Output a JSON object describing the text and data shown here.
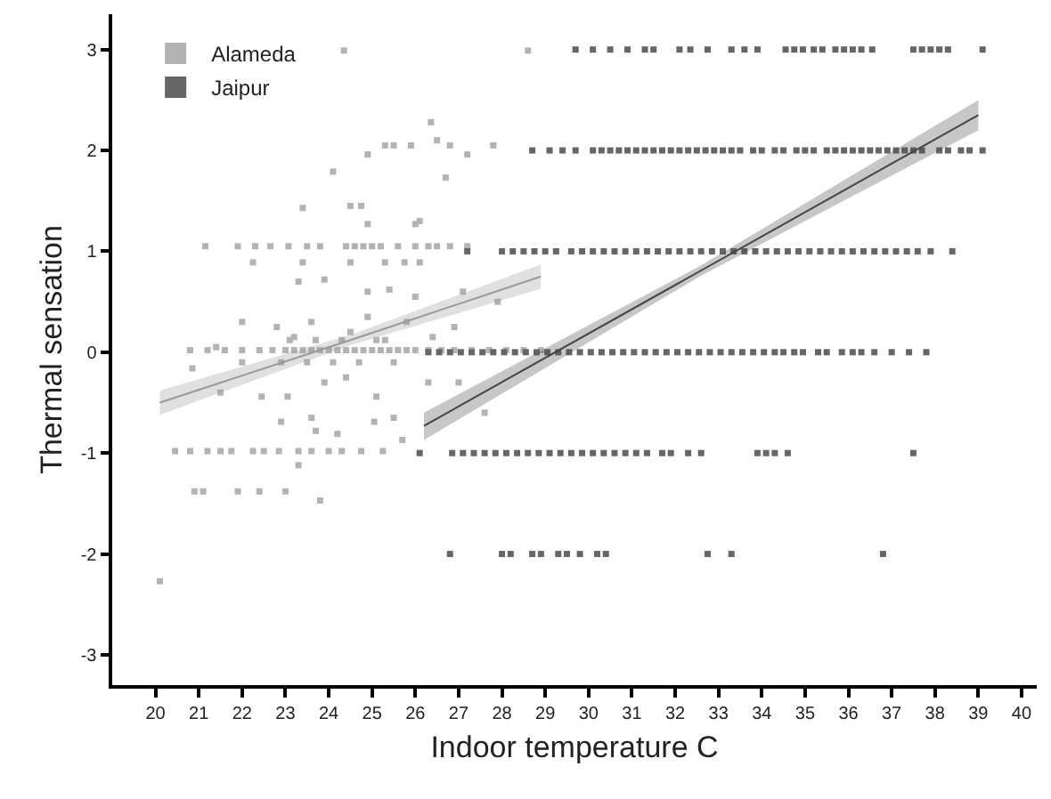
{
  "chart_data": {
    "type": "scatter",
    "xlabel": "Indoor temperature C",
    "ylabel": "Thermal sensation",
    "xlim": [
      19.0,
      40.35
    ],
    "ylim": [
      -3.3,
      3.35
    ],
    "xticks": [
      20,
      21,
      22,
      23,
      24,
      25,
      26,
      27,
      28,
      29,
      30,
      31,
      32,
      33,
      34,
      35,
      36,
      37,
      38,
      39,
      40
    ],
    "yticks": [
      -3,
      -2,
      -1,
      0,
      1,
      2,
      3
    ],
    "legend": "top left",
    "series": [
      {
        "name": "Alameda",
        "marker": "square",
        "color": "#b3b3b3",
        "x": [
          24.35,
          28.6,
          26.36,
          24.9,
          25.3,
          25.5,
          25.9,
          26.5,
          26.8,
          27.2,
          27.8,
          24.1,
          26.7,
          23.4,
          24.5,
          24.75,
          24.9,
          26.0,
          26.1,
          21.15,
          21.9,
          22.3,
          22.65,
          23.07,
          23.5,
          23.8,
          24.4,
          24.6,
          24.8,
          25.0,
          25.2,
          25.6,
          26.0,
          26.3,
          26.5,
          26.8,
          27.2,
          22.25,
          23.4,
          24.5,
          25.3,
          25.75,
          26.1,
          23.3,
          23.9,
          24.9,
          25.4,
          26.0,
          27.1,
          27.9,
          22.0,
          22.8,
          23.2,
          23.6,
          24.5,
          24.9,
          25.3,
          25.8,
          26.4,
          26.9,
          21.4,
          20.8,
          21.2,
          21.6,
          22.0,
          22.4,
          22.7,
          23.0,
          23.2,
          23.4,
          23.6,
          23.8,
          24.0,
          24.2,
          24.4,
          24.6,
          24.8,
          25.0,
          25.2,
          25.4,
          25.6,
          25.8,
          26.0,
          26.3,
          26.6,
          26.9,
          27.3,
          27.7,
          28.1,
          28.5,
          28.9,
          22.9,
          23.5,
          24.1,
          24.7,
          25.5,
          23.1,
          23.7,
          24.3,
          25.1,
          20.85,
          22.0,
          22.45,
          23.05,
          22.9,
          23.6,
          23.7,
          24.2,
          25.1,
          25.05,
          25.5,
          25.7,
          26.3,
          27.0,
          27.6,
          24.4,
          23.9,
          21.5,
          20.45,
          20.8,
          21.2,
          21.5,
          21.75,
          22.25,
          22.5,
          22.85,
          23.3,
          23.6,
          24.0,
          24.3,
          24.75,
          25.25,
          23.3,
          20.9,
          21.1,
          21.9,
          22.4,
          23.0,
          23.8,
          20.1
        ],
        "values": [
          2.99,
          2.99,
          2.28,
          1.96,
          2.05,
          2.05,
          2.05,
          2.1,
          2.05,
          1.96,
          2.05,
          1.79,
          1.73,
          1.43,
          1.45,
          1.45,
          1.27,
          1.27,
          1.3,
          1.05,
          1.05,
          1.05,
          1.05,
          1.05,
          1.05,
          1.05,
          1.05,
          1.05,
          1.05,
          1.05,
          1.05,
          1.05,
          1.05,
          1.05,
          1.05,
          1.05,
          1.05,
          0.89,
          0.89,
          0.89,
          0.89,
          0.89,
          0.89,
          0.7,
          0.72,
          0.6,
          0.62,
          0.55,
          0.6,
          0.5,
          0.3,
          0.25,
          0.15,
          0.3,
          0.2,
          0.35,
          0.12,
          0.3,
          0.15,
          0.25,
          0.05,
          0.02,
          0.02,
          0.02,
          0.02,
          0.02,
          0.02,
          0.02,
          0.02,
          0.02,
          0.02,
          0.02,
          0.02,
          0.02,
          0.02,
          0.02,
          0.02,
          0.02,
          0.02,
          0.02,
          0.02,
          0.02,
          0.02,
          0.02,
          0.02,
          0.02,
          0.02,
          0.02,
          0.02,
          0.02,
          0.02,
          -0.1,
          -0.1,
          -0.1,
          -0.1,
          -0.1,
          0.12,
          0.12,
          0.12,
          0.12,
          -0.16,
          -0.1,
          -0.44,
          -0.44,
          -0.69,
          -0.65,
          -0.78,
          -0.81,
          -0.44,
          -0.69,
          -0.65,
          -0.87,
          -0.3,
          -0.3,
          -0.6,
          -0.25,
          -0.3,
          -0.4,
          -0.98,
          -0.98,
          -0.98,
          -0.98,
          -0.98,
          -0.98,
          -0.98,
          -0.98,
          -0.98,
          -0.98,
          -0.98,
          -0.98,
          -0.98,
          -0.98,
          -1.12,
          -1.38,
          -1.38,
          -1.38,
          -1.38,
          -1.38,
          -1.47,
          -2.27
        ]
      },
      {
        "name": "Jaipur",
        "marker": "square",
        "color": "#666666",
        "x": [
          29.7,
          30.1,
          30.5,
          30.9,
          31.3,
          31.5,
          32.1,
          32.35,
          32.75,
          33.3,
          33.6,
          33.9,
          34.55,
          34.75,
          34.95,
          35.2,
          35.4,
          35.7,
          35.9,
          36.1,
          36.3,
          36.55,
          37.5,
          37.7,
          37.9,
          38.1,
          38.3,
          39.1,
          28.7,
          29.1,
          29.4,
          29.7,
          30.1,
          30.3,
          30.5,
          30.7,
          30.9,
          31.1,
          31.3,
          31.5,
          31.7,
          31.9,
          32.1,
          32.3,
          32.5,
          32.7,
          32.9,
          33.1,
          33.3,
          33.5,
          33.8,
          34.0,
          34.3,
          34.5,
          34.8,
          35.0,
          35.2,
          35.5,
          35.7,
          35.9,
          36.1,
          36.3,
          36.5,
          36.7,
          36.9,
          37.1,
          37.3,
          37.5,
          37.7,
          38.1,
          38.3,
          38.6,
          38.8,
          39.1,
          27.2,
          28.0,
          28.25,
          28.5,
          28.75,
          29.0,
          29.25,
          29.6,
          29.85,
          30.1,
          30.35,
          30.6,
          30.85,
          31.1,
          31.35,
          31.6,
          31.85,
          32.1,
          32.35,
          32.6,
          32.85,
          33.1,
          33.35,
          33.6,
          33.85,
          34.1,
          34.35,
          34.6,
          34.85,
          35.1,
          35.35,
          35.6,
          35.85,
          36.1,
          36.35,
          36.6,
          36.85,
          37.1,
          37.35,
          37.6,
          37.9,
          38.4,
          26.3,
          26.55,
          26.8,
          27.05,
          27.3,
          27.55,
          27.8,
          28.05,
          28.3,
          28.55,
          28.8,
          29.05,
          29.3,
          29.55,
          29.8,
          30.05,
          30.3,
          30.55,
          30.8,
          31.05,
          31.3,
          31.55,
          31.8,
          32.05,
          32.3,
          32.55,
          32.8,
          33.05,
          33.3,
          33.55,
          33.8,
          34.05,
          34.3,
          34.5,
          34.75,
          34.95,
          35.3,
          35.5,
          35.85,
          36.1,
          36.3,
          36.6,
          37.0,
          37.4,
          37.8,
          26.1,
          26.85,
          27.1,
          27.35,
          27.6,
          27.85,
          28.1,
          28.35,
          28.6,
          28.85,
          29.1,
          29.35,
          29.6,
          29.85,
          30.1,
          30.35,
          30.6,
          30.85,
          31.1,
          31.35,
          31.7,
          31.9,
          32.3,
          32.6,
          33.9,
          34.1,
          34.3,
          34.6,
          37.5,
          26.8,
          28.0,
          28.2,
          28.7,
          28.9,
          29.3,
          29.5,
          29.8,
          30.2,
          30.4,
          32.75,
          33.3,
          36.8
        ],
        "values": [
          3,
          3,
          3,
          3,
          3,
          3,
          3,
          3,
          3,
          3,
          3,
          3,
          3,
          3,
          3,
          3,
          3,
          3,
          3,
          3,
          3,
          3,
          3,
          3,
          3,
          3,
          3,
          3,
          2,
          2,
          2,
          2,
          2,
          2,
          2,
          2,
          2,
          2,
          2,
          2,
          2,
          2,
          2,
          2,
          2,
          2,
          2,
          2,
          2,
          2,
          2,
          2,
          2,
          2,
          2,
          2,
          2,
          2,
          2,
          2,
          2,
          2,
          2,
          2,
          2,
          2,
          2,
          2,
          2,
          2,
          2,
          2,
          2,
          2,
          1,
          1,
          1,
          1,
          1,
          1,
          1,
          1,
          1,
          1,
          1,
          1,
          1,
          1,
          1,
          1,
          1,
          1,
          1,
          1,
          1,
          1,
          1,
          1,
          1,
          1,
          1,
          1,
          1,
          1,
          1,
          1,
          1,
          1,
          1,
          1,
          1,
          1,
          1,
          1,
          1,
          1,
          0,
          0,
          0,
          0,
          0,
          0,
          0,
          0,
          0,
          0,
          0,
          0,
          0,
          0,
          0,
          0,
          0,
          0,
          0,
          0,
          0,
          0,
          0,
          0,
          0,
          0,
          0,
          0,
          0,
          0,
          0,
          0,
          0,
          0,
          0,
          0,
          0,
          0,
          0,
          0,
          0,
          0,
          0,
          0,
          0,
          -1,
          -1,
          -1,
          -1,
          -1,
          -1,
          -1,
          -1,
          -1,
          -1,
          -1,
          -1,
          -1,
          -1,
          -1,
          -1,
          -1,
          -1,
          -1,
          -1,
          -1,
          -1,
          -1,
          -1,
          -1,
          -1,
          -1,
          -1,
          -1,
          -2,
          -2,
          -2,
          -2,
          -2,
          -2,
          -2,
          -2,
          -2,
          -2,
          -2,
          -2,
          -2
        ]
      },
      {
        "type": "line",
        "marker": "none",
        "color": "#999999",
        "x": [
          20.1,
          24.5,
          28.9
        ],
        "values": [
          -0.5,
          0.12,
          0.75
        ],
        "lower": [
          -0.62,
          0.07,
          0.63
        ],
        "upper": [
          -0.38,
          0.17,
          0.87
        ]
      },
      {
        "type": "line",
        "marker": "none",
        "color": "#444444",
        "x": [
          26.2,
          32.6,
          39.0
        ],
        "values": [
          -0.73,
          0.81,
          2.35
        ],
        "lower": [
          -0.87,
          0.76,
          2.2
        ],
        "upper": [
          -0.6,
          0.86,
          2.5
        ]
      }
    ]
  }
}
